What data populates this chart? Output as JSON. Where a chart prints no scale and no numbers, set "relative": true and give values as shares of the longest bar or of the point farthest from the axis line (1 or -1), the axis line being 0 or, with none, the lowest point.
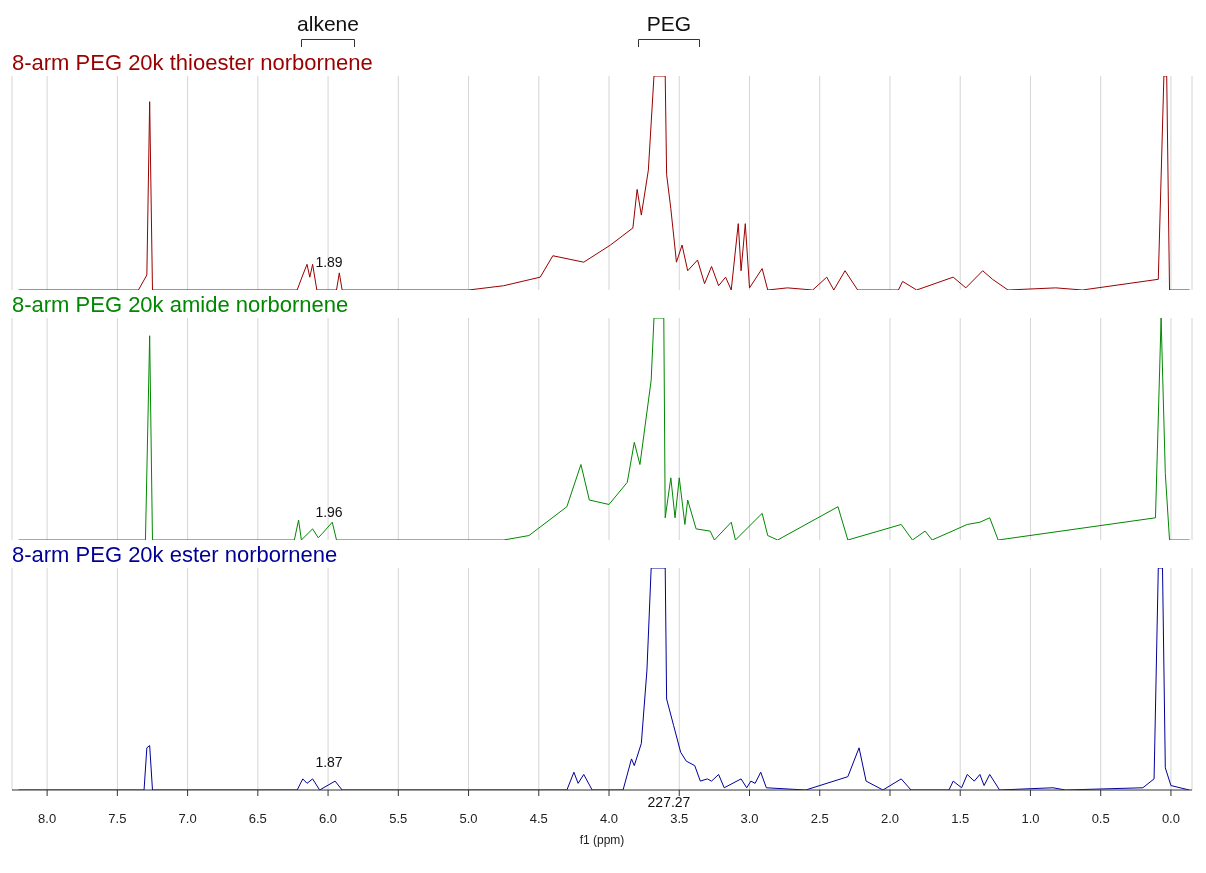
{
  "chart_data": [
    {
      "type": "line",
      "title": "8-arm PEG 20k thioester norbornene",
      "color": "#990000",
      "relative": true,
      "grid": "x",
      "tick_labels": false,
      "xlim": [
        8.25,
        -0.15
      ],
      "xticks": [
        8,
        7.5,
        7,
        6.5,
        6,
        5.5,
        5,
        4.5,
        4,
        3.5,
        3,
        2.5,
        2,
        1.5,
        1,
        0.5,
        0
      ],
      "x": [
        8.2,
        7.35,
        7.29,
        7.27,
        7.25,
        6.22,
        6.18,
        6.15,
        6.13,
        6.11,
        6.08,
        5.94,
        5.92,
        5.9,
        5.0,
        4.75,
        4.49,
        4.4,
        4.18,
        3.99,
        3.83,
        3.8,
        3.77,
        3.72,
        3.68,
        3.6,
        3.59,
        3.56,
        3.52,
        3.48,
        3.44,
        3.37,
        3.32,
        3.27,
        3.22,
        3.17,
        3.13,
        3.08,
        3.06,
        3.03,
        3.0,
        2.91,
        2.87,
        2.73,
        2.55,
        2.45,
        2.4,
        2.32,
        2.23,
        1.94,
        1.91,
        1.81,
        1.55,
        1.46,
        1.34,
        1.27,
        1.16,
        0.82,
        0.63,
        0.09,
        0.05,
        0.03,
        0.01,
        -0.13
      ],
      "values": [
        0,
        0,
        0.07,
        0.88,
        0,
        0,
        0.07,
        0.12,
        0.06,
        0.12,
        0,
        0,
        0.08,
        0,
        0,
        0.02,
        0.06,
        0.16,
        0.13,
        0.21,
        0.29,
        0.47,
        0.35,
        0.56,
        1,
        1,
        0.54,
        0.38,
        0.13,
        0.21,
        0.09,
        0.14,
        0.03,
        0.11,
        0.02,
        0.06,
        0,
        0.31,
        0.09,
        0.31,
        0.01,
        0.1,
        0,
        0.01,
        0,
        0.06,
        0,
        0.09,
        0,
        0,
        0.04,
        0,
        0.06,
        0.01,
        0.09,
        0.05,
        0,
        0.01,
        0,
        0.05,
        1,
        1,
        0,
        0
      ],
      "annotations": [
        "alkene",
        "PEG",
        "1.89"
      ]
    },
    {
      "type": "line",
      "title": "8-arm PEG 20k amide norbornene",
      "color": "#008800",
      "relative": true,
      "grid": "x",
      "tick_labels": false,
      "xlim": [
        8.25,
        -0.15
      ],
      "xticks": [
        8,
        7.5,
        7,
        6.5,
        6,
        5.5,
        5,
        4.5,
        4,
        3.5,
        3,
        2.5,
        2,
        1.5,
        1,
        0.5,
        0
      ],
      "x": [
        8.2,
        7.3,
        7.27,
        7.25,
        6.24,
        6.21,
        6.19,
        6.11,
        6.07,
        6.04,
        5.97,
        5.94,
        4.75,
        4.57,
        4.3,
        4.2,
        4.14,
        4.0,
        3.87,
        3.82,
        3.78,
        3.7,
        3.68,
        3.61,
        3.6,
        3.56,
        3.53,
        3.5,
        3.46,
        3.44,
        3.38,
        3.28,
        3.25,
        3.13,
        3.1,
        2.91,
        2.87,
        2.8,
        2.37,
        2.3,
        1.92,
        1.84,
        1.75,
        1.7,
        1.45,
        1.36,
        1.29,
        1.23,
        0.11,
        0.07,
        0.04,
        0.01,
        -0.13
      ],
      "values": [
        0,
        0,
        0.92,
        0,
        0,
        0.09,
        0,
        0.05,
        0.01,
        0.03,
        0.08,
        0,
        0,
        0.02,
        0.15,
        0.34,
        0.18,
        0.16,
        0.26,
        0.44,
        0.34,
        0.72,
        1,
        1,
        0.1,
        0.28,
        0.1,
        0.28,
        0.07,
        0.18,
        0.05,
        0.04,
        0,
        0.08,
        0,
        0.12,
        0.02,
        0,
        0.15,
        0,
        0.07,
        0,
        0.04,
        0,
        0.07,
        0.08,
        0.1,
        0,
        0.1,
        1,
        0.3,
        0,
        0
      ],
      "annotations": [
        "1.96"
      ]
    },
    {
      "type": "line",
      "title": "8-arm PEG 20k ester norbornene",
      "xlabel": "f1 (ppm)",
      "color": "#000099",
      "relative": true,
      "grid": "x",
      "xlim": [
        8.25,
        -0.15
      ],
      "xticks": [
        {
          "value": 8,
          "label": "8.0"
        },
        {
          "value": 7.5,
          "label": "7.5"
        },
        {
          "value": 7,
          "label": "7.0"
        },
        {
          "value": 6.5,
          "label": "6.5"
        },
        {
          "value": 6,
          "label": "6.0"
        },
        {
          "value": 5.5,
          "label": "5.5"
        },
        {
          "value": 5,
          "label": "5.0"
        },
        {
          "value": 4.5,
          "label": "4.5"
        },
        {
          "value": 4,
          "label": "4.0"
        },
        {
          "value": 3.5,
          "label": "3.5"
        },
        {
          "value": 3,
          "label": "3.0"
        },
        {
          "value": 2.5,
          "label": "2.5"
        },
        {
          "value": 2,
          "label": "2.0"
        },
        {
          "value": 1.5,
          "label": "1.5"
        },
        {
          "value": 1,
          "label": "1.0"
        },
        {
          "value": 0.5,
          "label": "0.5"
        },
        {
          "value": 0,
          "label": "0.0"
        }
      ],
      "x": [
        8.2,
        7.31,
        7.29,
        7.27,
        7.25,
        6.22,
        6.18,
        6.15,
        6.11,
        6.06,
        5.95,
        5.9,
        4.3,
        4.25,
        4.22,
        4.18,
        4.12,
        3.9,
        3.84,
        3.82,
        3.77,
        3.73,
        3.7,
        3.6,
        3.59,
        3.54,
        3.49,
        3.45,
        3.39,
        3.35,
        3.3,
        3.27,
        3.22,
        3.18,
        3.06,
        3.02,
        2.99,
        2.96,
        2.92,
        2.88,
        2.6,
        2.3,
        2.22,
        2.17,
        2.05,
        1.92,
        1.85,
        1.58,
        1.55,
        1.49,
        1.45,
        1.4,
        1.36,
        1.33,
        1.29,
        1.22,
        0.84,
        0.75,
        0.2,
        0.12,
        0.09,
        0.06,
        0.04,
        0.0,
        -0.13
      ],
      "values": [
        0,
        0,
        0.19,
        0.2,
        0,
        0,
        0.05,
        0.03,
        0.05,
        0,
        0.04,
        0,
        0,
        0.08,
        0.03,
        0.07,
        0,
        0,
        0.14,
        0.11,
        0.21,
        0.54,
        1,
        1,
        0.41,
        0.29,
        0.17,
        0.13,
        0.11,
        0.04,
        0.05,
        0.04,
        0.07,
        0.01,
        0.05,
        0.01,
        0.04,
        0.03,
        0.08,
        0.01,
        0,
        0.06,
        0.19,
        0.04,
        0,
        0.05,
        0,
        0,
        0.04,
        0.01,
        0.07,
        0.04,
        0.07,
        0.02,
        0.07,
        0,
        0.01,
        0,
        0.01,
        0.05,
        1,
        1,
        0.1,
        0.02,
        0
      ],
      "annotations": [
        "1.87",
        "227.27"
      ]
    }
  ]
}
